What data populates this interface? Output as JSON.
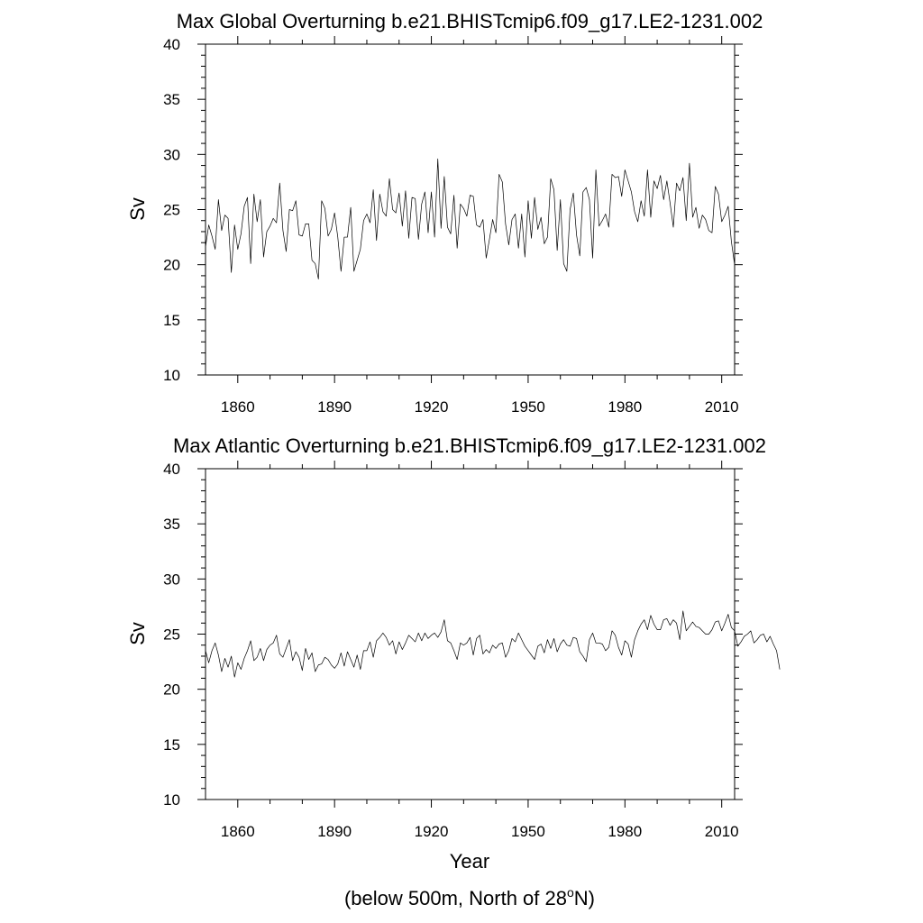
{
  "chart_data": [
    {
      "type": "line",
      "title": "Max Global Overturning b.e21.BHISTcmip6.f09_g17.LE2-1231.002",
      "xlabel": "",
      "ylabel": "Sv",
      "xlim": [
        1850,
        2014
      ],
      "ylim": [
        10,
        40
      ],
      "xticks": [
        1860,
        1890,
        1920,
        1950,
        1980,
        2010
      ],
      "yticks": [
        10,
        15,
        20,
        25,
        30,
        35,
        40
      ],
      "grid": false,
      "series": [
        {
          "name": "Max Global Overturning",
          "x_start": 1850,
          "x_step": 1,
          "values": [
            21.6,
            23.6,
            22.6,
            21.4,
            25.9,
            23.1,
            24.5,
            24.2,
            19.3,
            23.6,
            21.4,
            22.8,
            25.3,
            26.1,
            20.1,
            26.4,
            23.9,
            25.9,
            20.7,
            23.0,
            23.5,
            24.2,
            23.8,
            27.4,
            23.1,
            21.2,
            25.0,
            24.9,
            25.8,
            22.7,
            22.6,
            23.7,
            23.7,
            20.4,
            20.1,
            18.7,
            25.8,
            25.1,
            22.6,
            23.2,
            24.7,
            22.5,
            19.4,
            22.5,
            22.5,
            25.2,
            19.4,
            20.4,
            21.4,
            24.0,
            24.6,
            23.8,
            26.8,
            22.2,
            26.4,
            24.8,
            24.4,
            27.8,
            25.0,
            24.7,
            26.5,
            23.5,
            26.7,
            22.4,
            26.1,
            26.0,
            22.3,
            25.5,
            26.6,
            22.9,
            26.6,
            22.5,
            29.6,
            23.3,
            28.0,
            23.4,
            22.8,
            26.3,
            21.5,
            25.5,
            25.1,
            24.4,
            26.3,
            26.2,
            23.6,
            23.4,
            24.1,
            20.6,
            22.3,
            24.1,
            22.9,
            28.2,
            27.5,
            23.7,
            21.8,
            24.1,
            24.6,
            21.5,
            24.6,
            20.7,
            25.8,
            22.4,
            26.1,
            23.2,
            24.3,
            21.9,
            22.5,
            27.8,
            26.8,
            21.3,
            25.9,
            20.1,
            19.4,
            25.0,
            26.5,
            22.7,
            20.8,
            26.6,
            27.0,
            25.9,
            20.6,
            28.6,
            23.5,
            24.0,
            24.6,
            23.4,
            28.2,
            27.9,
            28.0,
            26.2,
            28.6,
            27.6,
            26.6,
            24.8,
            23.9,
            25.8,
            24.4,
            28.6,
            24.3,
            27.6,
            26.9,
            28.1,
            25.9,
            27.6,
            25.6,
            23.4,
            27.4,
            26.7,
            27.9,
            24.0,
            29.2,
            24.3,
            25.2,
            23.3,
            24.5,
            24.1,
            23.1,
            22.9,
            27.1,
            26.4,
            23.9,
            24.5,
            25.3,
            22.1,
            20.0
          ]
        }
      ]
    },
    {
      "type": "line",
      "title": "Max Atlantic Overturning b.e21.BHISTcmip6.f09_g17.LE2-1231.002",
      "xlabel": "Year",
      "ylabel": "Sv",
      "xlim": [
        1850,
        2014
      ],
      "ylim": [
        10,
        40
      ],
      "xticks": [
        1860,
        1890,
        1920,
        1950,
        1980,
        2010
      ],
      "yticks": [
        10,
        15,
        20,
        25,
        30,
        35,
        40
      ],
      "grid": false,
      "series": [
        {
          "name": "Max Atlantic Overturning",
          "x_start": 1850,
          "x_step": 1,
          "values": [
            23.5,
            22.4,
            23.5,
            24.2,
            23.1,
            21.6,
            22.8,
            22.0,
            23.0,
            21.1,
            22.4,
            21.8,
            22.8,
            23.5,
            24.4,
            22.6,
            22.9,
            23.7,
            22.6,
            23.6,
            24.0,
            24.2,
            24.9,
            23.2,
            22.9,
            23.7,
            24.5,
            22.6,
            23.4,
            22.9,
            21.7,
            23.7,
            22.7,
            23.3,
            21.6,
            22.2,
            22.3,
            22.9,
            22.7,
            22.2,
            21.9,
            22.3,
            23.3,
            22.1,
            23.4,
            22.7,
            22.0,
            23.1,
            21.8,
            23.5,
            23.5,
            24.3,
            22.9,
            24.4,
            24.7,
            25.1,
            24.7,
            24.0,
            24.4,
            23.2,
            24.3,
            23.6,
            24.2,
            24.9,
            24.6,
            24.3,
            25.1,
            24.4,
            25.1,
            24.6,
            24.9,
            25.1,
            24.7,
            25.2,
            26.3,
            24.4,
            24.2,
            23.5,
            22.7,
            24.2,
            24.0,
            24.2,
            24.7,
            23.1,
            24.6,
            24.9,
            23.2,
            23.6,
            23.3,
            24.0,
            23.7,
            24.1,
            24.2,
            22.9,
            23.5,
            24.6,
            24.3,
            25.1,
            24.5,
            23.9,
            23.5,
            23.1,
            22.7,
            23.9,
            24.1,
            23.3,
            24.5,
            23.7,
            24.6,
            23.4,
            24.1,
            24.5,
            24.0,
            23.9,
            24.7,
            24.6,
            23.4,
            23.0,
            22.5,
            24.5,
            25.1,
            24.2,
            24.2,
            24.1,
            23.5,
            23.8,
            25.3,
            24.9,
            23.8,
            23.1,
            24.4,
            24.1,
            22.9,
            24.5,
            25.3,
            25.9,
            26.3,
            25.4,
            26.7,
            25.9,
            25.4,
            25.4,
            26.3,
            26.4,
            25.8,
            26.3,
            26.0,
            24.5,
            27.1,
            25.3,
            25.7,
            26.1,
            25.7,
            25.6,
            25.3,
            25.0,
            25.0,
            25.4,
            26.1,
            26.2,
            25.3,
            26.0,
            26.8,
            25.6,
            25.3,
            23.9,
            24.3,
            24.8,
            25.0,
            25.3,
            24.2,
            24.5,
            24.9,
            25.0,
            24.3,
            24.8,
            24.1,
            23.5,
            21.8
          ]
        }
      ]
    }
  ],
  "footnote": {
    "text_before": "(below 500m, North of 28",
    "superscript": "o",
    "text_after": "N)"
  }
}
